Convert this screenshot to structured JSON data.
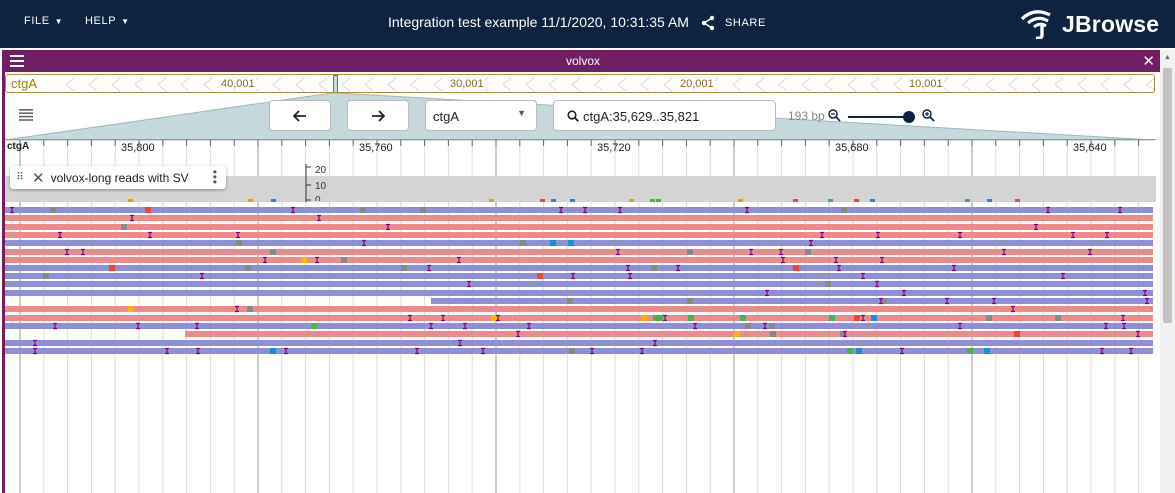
{
  "header": {
    "file_label": "FILE",
    "help_label": "HELP",
    "title": "Integration test example 11/1/2020, 10:31:35 AM",
    "share_label": "SHARE",
    "logo_text": "JBrowse",
    "background_color": "#0d233f"
  },
  "view": {
    "name": "volvox",
    "accent_color": "#721e63",
    "overview": {
      "refname": "ctgA",
      "labels": [
        "40,001",
        "30,001",
        "20,001",
        "10,001"
      ]
    },
    "controls": {
      "back_icon": "arrow-left-icon",
      "forward_icon": "arrow-right-icon",
      "refname": "ctgA",
      "location": "ctgA:35,629..35,821",
      "bp_label": "193 bp"
    },
    "ruler": {
      "refname": "ctgA",
      "labels": [
        "35,800",
        "35,760",
        "35,720",
        "35,680",
        "35,640"
      ]
    },
    "track": {
      "name": "volvox-long reads with SV",
      "coverage_axis": [
        "20",
        "10",
        "0"
      ],
      "forward_color": "#ec8b8b",
      "reverse_color": "#8f8fd8",
      "insertion_color": "#800080"
    }
  }
}
